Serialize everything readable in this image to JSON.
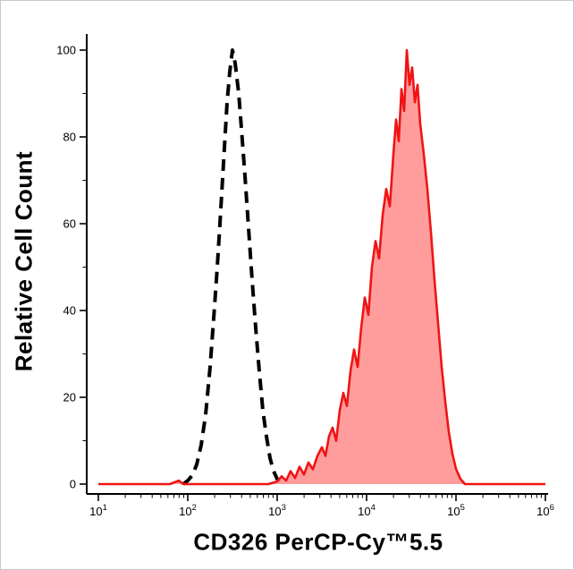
{
  "figure": {
    "background": "#ffffff",
    "border_color": "#c9c9c9"
  },
  "chart_data": {
    "type": "area",
    "subtype": "flow-cytometry-histogram",
    "title": "",
    "xlabel": "CD326 PerCP-Cy™5.5",
    "ylabel": "Relative Cell Count",
    "x_scale": "log10",
    "xlim_log10": [
      1,
      6
    ],
    "ylim": [
      0,
      100
    ],
    "yticks": [
      0,
      20,
      40,
      60,
      80,
      100
    ],
    "xtick_decades": [
      1,
      2,
      3,
      4,
      5,
      6
    ],
    "xtick_label_base": "10",
    "grid": false,
    "legend": "none",
    "axis_color": "#000000",
    "series": [
      {
        "name": "dashed-black-control",
        "line_style": "dashed",
        "color": "#000000",
        "line_width": 4,
        "dash_pattern": "13 8",
        "fill": "none",
        "peak_log10x": 2.5,
        "peak_y": 100,
        "points_log10x_y": [
          [
            1.95,
            0
          ],
          [
            2.0,
            0.8
          ],
          [
            2.05,
            2
          ],
          [
            2.1,
            4.5
          ],
          [
            2.15,
            9
          ],
          [
            2.2,
            16
          ],
          [
            2.25,
            27
          ],
          [
            2.3,
            41
          ],
          [
            2.33,
            50
          ],
          [
            2.36,
            60
          ],
          [
            2.4,
            74
          ],
          [
            2.44,
            88
          ],
          [
            2.47,
            95
          ],
          [
            2.5,
            100
          ],
          [
            2.53,
            97
          ],
          [
            2.57,
            90
          ],
          [
            2.6,
            82
          ],
          [
            2.64,
            71
          ],
          [
            2.68,
            59
          ],
          [
            2.72,
            47
          ],
          [
            2.76,
            36
          ],
          [
            2.8,
            26
          ],
          [
            2.84,
            17
          ],
          [
            2.88,
            11
          ],
          [
            2.92,
            6
          ],
          [
            2.96,
            3
          ],
          [
            3.0,
            1.2
          ],
          [
            3.05,
            0
          ]
        ]
      },
      {
        "name": "red-filled-stained",
        "line_style": "solid",
        "color": "#f01414",
        "line_width": 2.6,
        "dash_pattern": "",
        "fill": "#ff8c8c",
        "fill_opacity": 0.85,
        "peak_log10x": 4.45,
        "peak_y": 100,
        "points_log10x_y": [
          [
            1.0,
            0
          ],
          [
            1.2,
            0
          ],
          [
            1.4,
            0
          ],
          [
            1.6,
            0
          ],
          [
            1.8,
            0
          ],
          [
            1.9,
            0.8
          ],
          [
            1.95,
            0
          ],
          [
            2.1,
            0
          ],
          [
            2.3,
            0
          ],
          [
            2.5,
            0
          ],
          [
            2.7,
            0
          ],
          [
            2.9,
            0
          ],
          [
            3.0,
            0.6
          ],
          [
            3.05,
            1.8
          ],
          [
            3.1,
            0.8
          ],
          [
            3.15,
            3
          ],
          [
            3.2,
            1.4
          ],
          [
            3.25,
            4
          ],
          [
            3.3,
            2.2
          ],
          [
            3.35,
            5
          ],
          [
            3.4,
            3.4
          ],
          [
            3.45,
            6.5
          ],
          [
            3.5,
            8.5
          ],
          [
            3.54,
            6.5
          ],
          [
            3.58,
            11
          ],
          [
            3.62,
            13
          ],
          [
            3.66,
            10
          ],
          [
            3.7,
            17
          ],
          [
            3.74,
            21
          ],
          [
            3.78,
            18
          ],
          [
            3.82,
            26
          ],
          [
            3.86,
            31
          ],
          [
            3.9,
            27
          ],
          [
            3.94,
            36
          ],
          [
            3.98,
            43
          ],
          [
            4.02,
            39
          ],
          [
            4.06,
            50
          ],
          [
            4.1,
            56
          ],
          [
            4.14,
            52
          ],
          [
            4.18,
            62
          ],
          [
            4.22,
            68
          ],
          [
            4.26,
            64
          ],
          [
            4.3,
            76
          ],
          [
            4.33,
            84
          ],
          [
            4.36,
            79
          ],
          [
            4.39,
            91
          ],
          [
            4.42,
            86
          ],
          [
            4.45,
            100
          ],
          [
            4.48,
            92
          ],
          [
            4.51,
            96
          ],
          [
            4.54,
            88
          ],
          [
            4.57,
            92
          ],
          [
            4.6,
            83
          ],
          [
            4.64,
            76
          ],
          [
            4.68,
            68
          ],
          [
            4.72,
            58
          ],
          [
            4.76,
            47
          ],
          [
            4.8,
            37
          ],
          [
            4.84,
            27
          ],
          [
            4.88,
            19
          ],
          [
            4.92,
            12
          ],
          [
            4.96,
            7
          ],
          [
            5.0,
            3.5
          ],
          [
            5.05,
            1.2
          ],
          [
            5.1,
            0
          ],
          [
            5.3,
            0
          ],
          [
            5.6,
            0
          ],
          [
            6.0,
            0
          ]
        ]
      }
    ]
  }
}
